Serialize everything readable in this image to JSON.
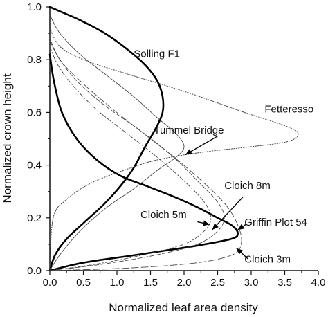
{
  "chart_data": {
    "type": "line",
    "xlabel": "Normalized leaf area density",
    "ylabel": "Normalized crown height",
    "xlim": [
      0.0,
      4.0
    ],
    "ylim": [
      0.0,
      1.0
    ],
    "x_ticks": [
      "0.0",
      "0.5",
      "1.0",
      "1.5",
      "2.0",
      "2.5",
      "3.0",
      "3.5",
      "4.0"
    ],
    "y_ticks": [
      "0.0",
      "0.2",
      "0.4",
      "0.6",
      "0.8",
      "1.0"
    ],
    "grid": false,
    "series": [
      {
        "name": "Solling F1",
        "style": "thick-solid",
        "points": [
          [
            0.0,
            0.0
          ],
          [
            0.08,
            0.06
          ],
          [
            0.25,
            0.12
          ],
          [
            0.5,
            0.18
          ],
          [
            0.8,
            0.25
          ],
          [
            1.05,
            0.32
          ],
          [
            1.25,
            0.39
          ],
          [
            1.42,
            0.47
          ],
          [
            1.58,
            0.54
          ],
          [
            1.68,
            0.6
          ],
          [
            1.68,
            0.66
          ],
          [
            1.6,
            0.72
          ],
          [
            1.42,
            0.78
          ],
          [
            1.15,
            0.84
          ],
          [
            0.82,
            0.9
          ],
          [
            0.45,
            0.95
          ],
          [
            0.18,
            0.98
          ],
          [
            0.0,
            1.0
          ]
        ]
      },
      {
        "name": "Griffin Plot 54",
        "style": "thick-solid",
        "points": [
          [
            0.0,
            0.0
          ],
          [
            0.5,
            0.03
          ],
          [
            1.3,
            0.06
          ],
          [
            2.2,
            0.095
          ],
          [
            2.7,
            0.12
          ],
          [
            2.8,
            0.14
          ],
          [
            2.72,
            0.17
          ],
          [
            2.5,
            0.2
          ],
          [
            2.2,
            0.24
          ],
          [
            1.85,
            0.28
          ],
          [
            1.45,
            0.32
          ],
          [
            1.05,
            0.36
          ],
          [
            0.7,
            0.42
          ],
          [
            0.4,
            0.5
          ],
          [
            0.18,
            0.6
          ],
          [
            0.06,
            0.72
          ],
          [
            0.0,
            0.82
          ]
        ]
      },
      {
        "name": "Fetteresso",
        "style": "dotted",
        "points": [
          [
            0.0,
            0.92
          ],
          [
            0.15,
            0.85
          ],
          [
            0.5,
            0.8
          ],
          [
            1.1,
            0.75
          ],
          [
            2.0,
            0.68
          ],
          [
            2.9,
            0.6
          ],
          [
            3.5,
            0.55
          ],
          [
            3.7,
            0.52
          ],
          [
            3.55,
            0.49
          ],
          [
            3.0,
            0.47
          ],
          [
            2.3,
            0.45
          ],
          [
            1.6,
            0.42
          ],
          [
            1.1,
            0.38
          ],
          [
            0.6,
            0.33
          ],
          [
            0.25,
            0.27
          ],
          [
            0.05,
            0.2
          ],
          [
            0.0,
            0.0
          ]
        ]
      },
      {
        "name": "Tummel Bridge",
        "style": "thin-solid",
        "points": [
          [
            0.0,
            0.97
          ],
          [
            0.15,
            0.9
          ],
          [
            0.45,
            0.82
          ],
          [
            0.85,
            0.74
          ],
          [
            1.25,
            0.66
          ],
          [
            1.6,
            0.58
          ],
          [
            1.88,
            0.52
          ],
          [
            2.0,
            0.47
          ],
          [
            1.88,
            0.43
          ],
          [
            1.6,
            0.38
          ],
          [
            1.25,
            0.31
          ],
          [
            0.85,
            0.24
          ],
          [
            0.45,
            0.15
          ],
          [
            0.15,
            0.06
          ],
          [
            0.0,
            0.0
          ]
        ]
      },
      {
        "name": "Cloich 8m",
        "style": "dashed",
        "points": [
          [
            0.0,
            0.87
          ],
          [
            0.15,
            0.8
          ],
          [
            0.4,
            0.72
          ],
          [
            0.8,
            0.63
          ],
          [
            1.3,
            0.54
          ],
          [
            1.8,
            0.44
          ],
          [
            2.2,
            0.34
          ],
          [
            2.5,
            0.26
          ],
          [
            2.6,
            0.2
          ],
          [
            2.5,
            0.15
          ],
          [
            2.2,
            0.1
          ],
          [
            1.6,
            0.06
          ],
          [
            0.8,
            0.025
          ],
          [
            0.0,
            0.0
          ]
        ]
      },
      {
        "name": "Cloich 5m",
        "style": "dash-dot",
        "points": [
          [
            0.0,
            0.85
          ],
          [
            0.12,
            0.78
          ],
          [
            0.35,
            0.7
          ],
          [
            0.7,
            0.61
          ],
          [
            1.15,
            0.52
          ],
          [
            1.6,
            0.43
          ],
          [
            2.0,
            0.34
          ],
          [
            2.3,
            0.26
          ],
          [
            2.4,
            0.2
          ],
          [
            2.3,
            0.15
          ],
          [
            2.0,
            0.1
          ],
          [
            1.4,
            0.06
          ],
          [
            0.7,
            0.025
          ],
          [
            0.0,
            0.0
          ]
        ]
      },
      {
        "name": "Cloich 3m",
        "style": "long-dash",
        "points": [
          [
            0.0,
            0.88
          ],
          [
            0.15,
            0.8
          ],
          [
            0.45,
            0.72
          ],
          [
            0.9,
            0.62
          ],
          [
            1.4,
            0.52
          ],
          [
            1.9,
            0.42
          ],
          [
            2.35,
            0.32
          ],
          [
            2.65,
            0.24
          ],
          [
            2.82,
            0.16
          ],
          [
            2.85,
            0.1
          ],
          [
            2.72,
            0.06
          ],
          [
            2.2,
            0.03
          ],
          [
            1.2,
            0.01
          ],
          [
            0.0,
            0.0
          ]
        ]
      }
    ],
    "annotations": [
      {
        "text": "Solling F1",
        "x": 1.25,
        "y": 0.81
      },
      {
        "text": "Fetteresso",
        "x": 3.2,
        "y": 0.6
      },
      {
        "text": "Tummel Bridge",
        "x": 1.55,
        "y": 0.52
      },
      {
        "text": "Cloich 8m",
        "x": 2.6,
        "y": 0.31
      },
      {
        "text": "Cloich 5m",
        "x": 1.35,
        "y": 0.2
      },
      {
        "text": "Griffin Plot 54",
        "x": 2.9,
        "y": 0.17
      },
      {
        "text": "Cloich 3m",
        "x": 2.9,
        "y": 0.03
      }
    ],
    "arrows": [
      {
        "label": "Tummel Bridge",
        "from": [
          2.5,
          0.51
        ],
        "to": [
          2.02,
          0.44
        ]
      },
      {
        "label": "Cloich 8m",
        "from": [
          2.88,
          0.28
        ],
        "to": [
          2.42,
          0.155
        ]
      },
      {
        "label": "Cloich 5m",
        "from": [
          2.2,
          0.185
        ],
        "to": [
          2.38,
          0.175
        ]
      },
      {
        "label": "Griffin Plot 54",
        "from": [
          2.92,
          0.175
        ],
        "to": [
          2.8,
          0.155
        ]
      },
      {
        "label": "Cloich 3m",
        "from": [
          2.95,
          0.045
        ],
        "to": [
          2.78,
          0.085
        ]
      }
    ]
  }
}
